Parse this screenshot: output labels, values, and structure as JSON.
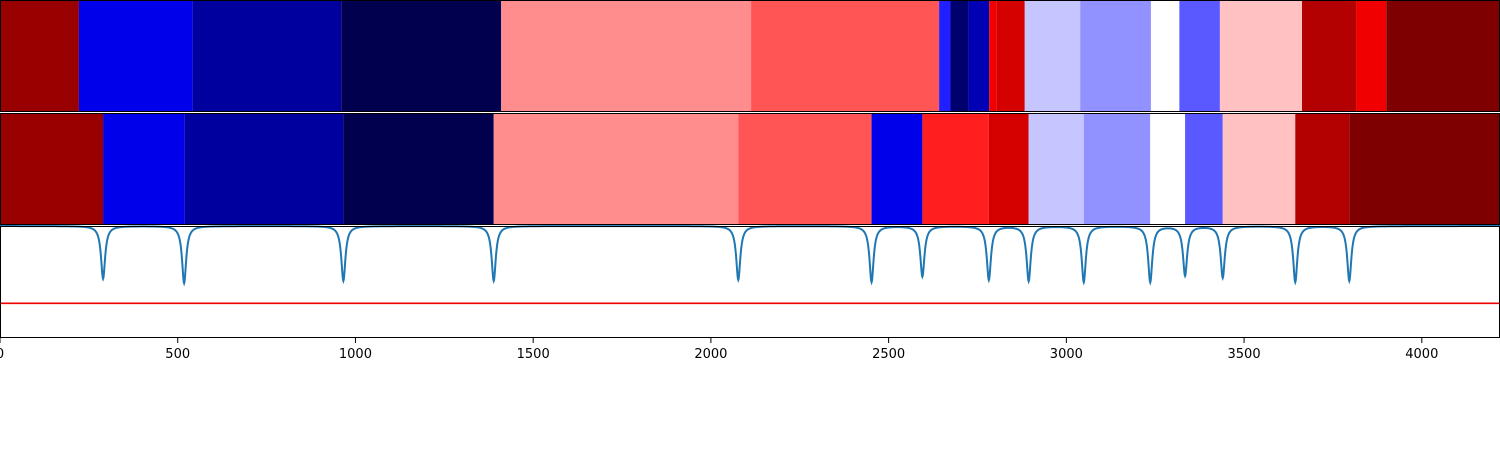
{
  "chart_data": {
    "type": "heatmap",
    "title": "",
    "xlabel": "",
    "ylabel": "",
    "xlim": [
      0,
      4220
    ],
    "x_ticks": [
      {
        "value": 0,
        "label": "0"
      },
      {
        "value": 500,
        "label": "500"
      },
      {
        "value": 1000,
        "label": "1000"
      },
      {
        "value": 1500,
        "label": "1500"
      },
      {
        "value": 2000,
        "label": "2000"
      },
      {
        "value": 2500,
        "label": "2500"
      },
      {
        "value": 3000,
        "label": "3000"
      },
      {
        "value": 3500,
        "label": "3500"
      },
      {
        "value": 4000,
        "label": "4000"
      }
    ],
    "grid": false,
    "legend": "none",
    "colormap": "seismic",
    "tracks": [
      {
        "segments": [
          {
            "start": 0,
            "end": 222,
            "color": "#990000"
          },
          {
            "start": 222,
            "end": 542,
            "color": "#0000ea"
          },
          {
            "start": 542,
            "end": 960,
            "color": "#00009f"
          },
          {
            "start": 960,
            "end": 1410,
            "color": "#00004f"
          },
          {
            "start": 1410,
            "end": 2113,
            "color": "#ff8d8d"
          },
          {
            "start": 2113,
            "end": 2642,
            "color": "#ff5555"
          },
          {
            "start": 2642,
            "end": 2674,
            "color": "#1f1fff"
          },
          {
            "start": 2674,
            "end": 2725,
            "color": "#00006f"
          },
          {
            "start": 2725,
            "end": 2783,
            "color": "#0000b5"
          },
          {
            "start": 2783,
            "end": 2804,
            "color": "#f00000"
          },
          {
            "start": 2804,
            "end": 2883,
            "color": "#d50000"
          },
          {
            "start": 2883,
            "end": 3039,
            "color": "#c5c5ff"
          },
          {
            "start": 3039,
            "end": 3238,
            "color": "#9191ff"
          },
          {
            "start": 3238,
            "end": 3318,
            "color": "#ffffff"
          },
          {
            "start": 3318,
            "end": 3432,
            "color": "#5959ff"
          },
          {
            "start": 3432,
            "end": 3663,
            "color": "#ffc1c1"
          },
          {
            "start": 3663,
            "end": 3815,
            "color": "#b30000"
          },
          {
            "start": 3815,
            "end": 3900,
            "color": "#f00000"
          },
          {
            "start": 3900,
            "end": 4220,
            "color": "#7f0000"
          }
        ]
      },
      {
        "segments": [
          {
            "start": 0,
            "end": 290,
            "color": "#990000"
          },
          {
            "start": 290,
            "end": 520,
            "color": "#0000ea"
          },
          {
            "start": 520,
            "end": 966,
            "color": "#00009f"
          },
          {
            "start": 966,
            "end": 1389,
            "color": "#00004f"
          },
          {
            "start": 1389,
            "end": 2077,
            "color": "#ff8d8d"
          },
          {
            "start": 2077,
            "end": 2452,
            "color": "#ff5555"
          },
          {
            "start": 2452,
            "end": 2595,
            "color": "#0000ea"
          },
          {
            "start": 2595,
            "end": 2782,
            "color": "#ff1f1f"
          },
          {
            "start": 2782,
            "end": 2894,
            "color": "#d50000"
          },
          {
            "start": 2894,
            "end": 3049,
            "color": "#c5c5ff"
          },
          {
            "start": 3049,
            "end": 3236,
            "color": "#9191ff"
          },
          {
            "start": 3236,
            "end": 3334,
            "color": "#ffffff"
          },
          {
            "start": 3334,
            "end": 3440,
            "color": "#5959ff"
          },
          {
            "start": 3440,
            "end": 3644,
            "color": "#ffc1c1"
          },
          {
            "start": 3644,
            "end": 3796,
            "color": "#b30000"
          },
          {
            "start": 3796,
            "end": 4220,
            "color": "#7f0000"
          }
        ]
      }
    ],
    "signal_panel": {
      "line_color": "#1f77b4",
      "threshold_color": "#ee0000",
      "ylim": [
        0,
        1
      ],
      "baseline": 1.0,
      "threshold": 0.31,
      "dips": [
        {
          "x": 290,
          "depth": 0.47
        },
        {
          "x": 518,
          "depth": 0.51
        },
        {
          "x": 966,
          "depth": 0.49
        },
        {
          "x": 1389,
          "depth": 0.49
        },
        {
          "x": 2077,
          "depth": 0.48
        },
        {
          "x": 2452,
          "depth": 0.5
        },
        {
          "x": 2595,
          "depth": 0.45
        },
        {
          "x": 2782,
          "depth": 0.48
        },
        {
          "x": 2894,
          "depth": 0.49
        },
        {
          "x": 3049,
          "depth": 0.5
        },
        {
          "x": 3236,
          "depth": 0.5
        },
        {
          "x": 3334,
          "depth": 0.44
        },
        {
          "x": 3440,
          "depth": 0.46
        },
        {
          "x": 3644,
          "depth": 0.5
        },
        {
          "x": 3796,
          "depth": 0.49
        }
      ]
    }
  }
}
